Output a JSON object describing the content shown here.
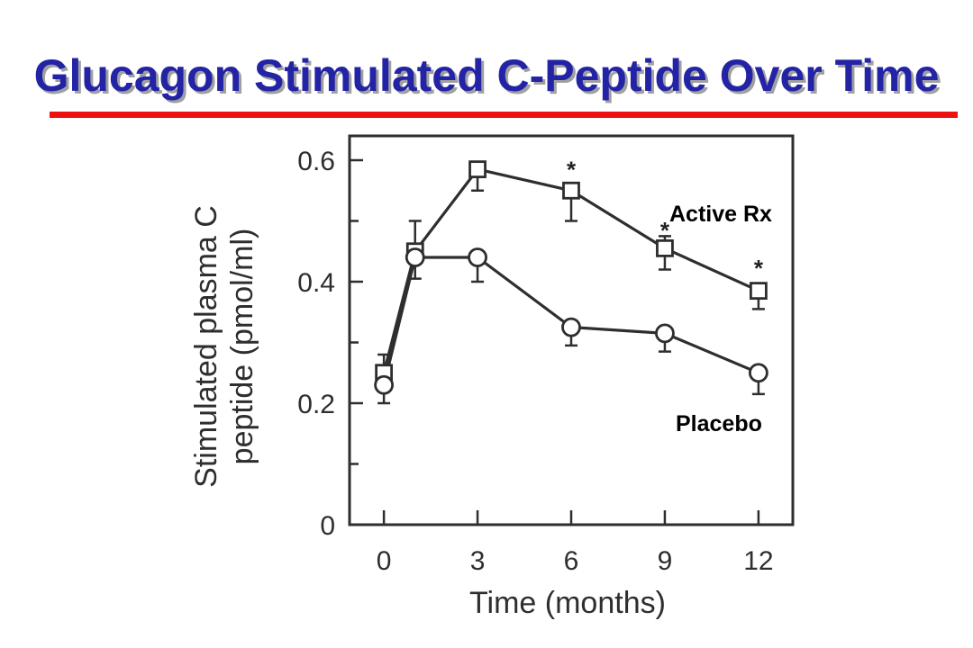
{
  "slide": {
    "title": "Glucagon Stimulated C-Peptide Over Time",
    "colors": {
      "title": "#2323a6",
      "title_shadow": "#a0a0a0",
      "underline": "#ee1111",
      "chart_ink": "#2e2e2e"
    }
  },
  "chart_data": {
    "type": "line",
    "xlabel": "Time (months)",
    "ylabel": "Stimulated plasma C peptide (pmol/ml)",
    "xlim": [
      -1.1,
      13.1
    ],
    "ylim": [
      0,
      0.64
    ],
    "x_ticks": [
      0,
      3,
      6,
      9,
      12
    ],
    "y_ticks": [
      0,
      0.2,
      0.4,
      0.6
    ],
    "y_minor_ticks": [
      0.1,
      0.3,
      0.5
    ],
    "grid": false,
    "legend_placement": "right",
    "series": [
      {
        "name": "Active Rx",
        "marker": "square",
        "x": [
          0,
          1,
          3,
          6,
          9,
          12
        ],
        "y": [
          0.25,
          0.45,
          0.585,
          0.55,
          0.455,
          0.385
        ],
        "err_low": [
          null,
          null,
          0.55,
          0.5,
          0.42,
          0.355
        ],
        "err_high": [
          0.28,
          0.5,
          null,
          null,
          0.475,
          null
        ]
      },
      {
        "name": "Placebo",
        "marker": "circle",
        "x": [
          0,
          1,
          3,
          6,
          9,
          12
        ],
        "y": [
          0.23,
          0.44,
          0.44,
          0.325,
          0.315,
          0.25
        ],
        "err_low": [
          0.2,
          0.405,
          0.4,
          0.295,
          0.285,
          0.215
        ],
        "err_high": [
          null,
          null,
          null,
          null,
          null,
          null
        ]
      }
    ],
    "annotations": [
      {
        "text": "*",
        "x": 6,
        "y": 0.593
      },
      {
        "text": "*",
        "x": 9,
        "y": 0.493
      },
      {
        "text": "*",
        "x": 12,
        "y": 0.431
      }
    ]
  }
}
